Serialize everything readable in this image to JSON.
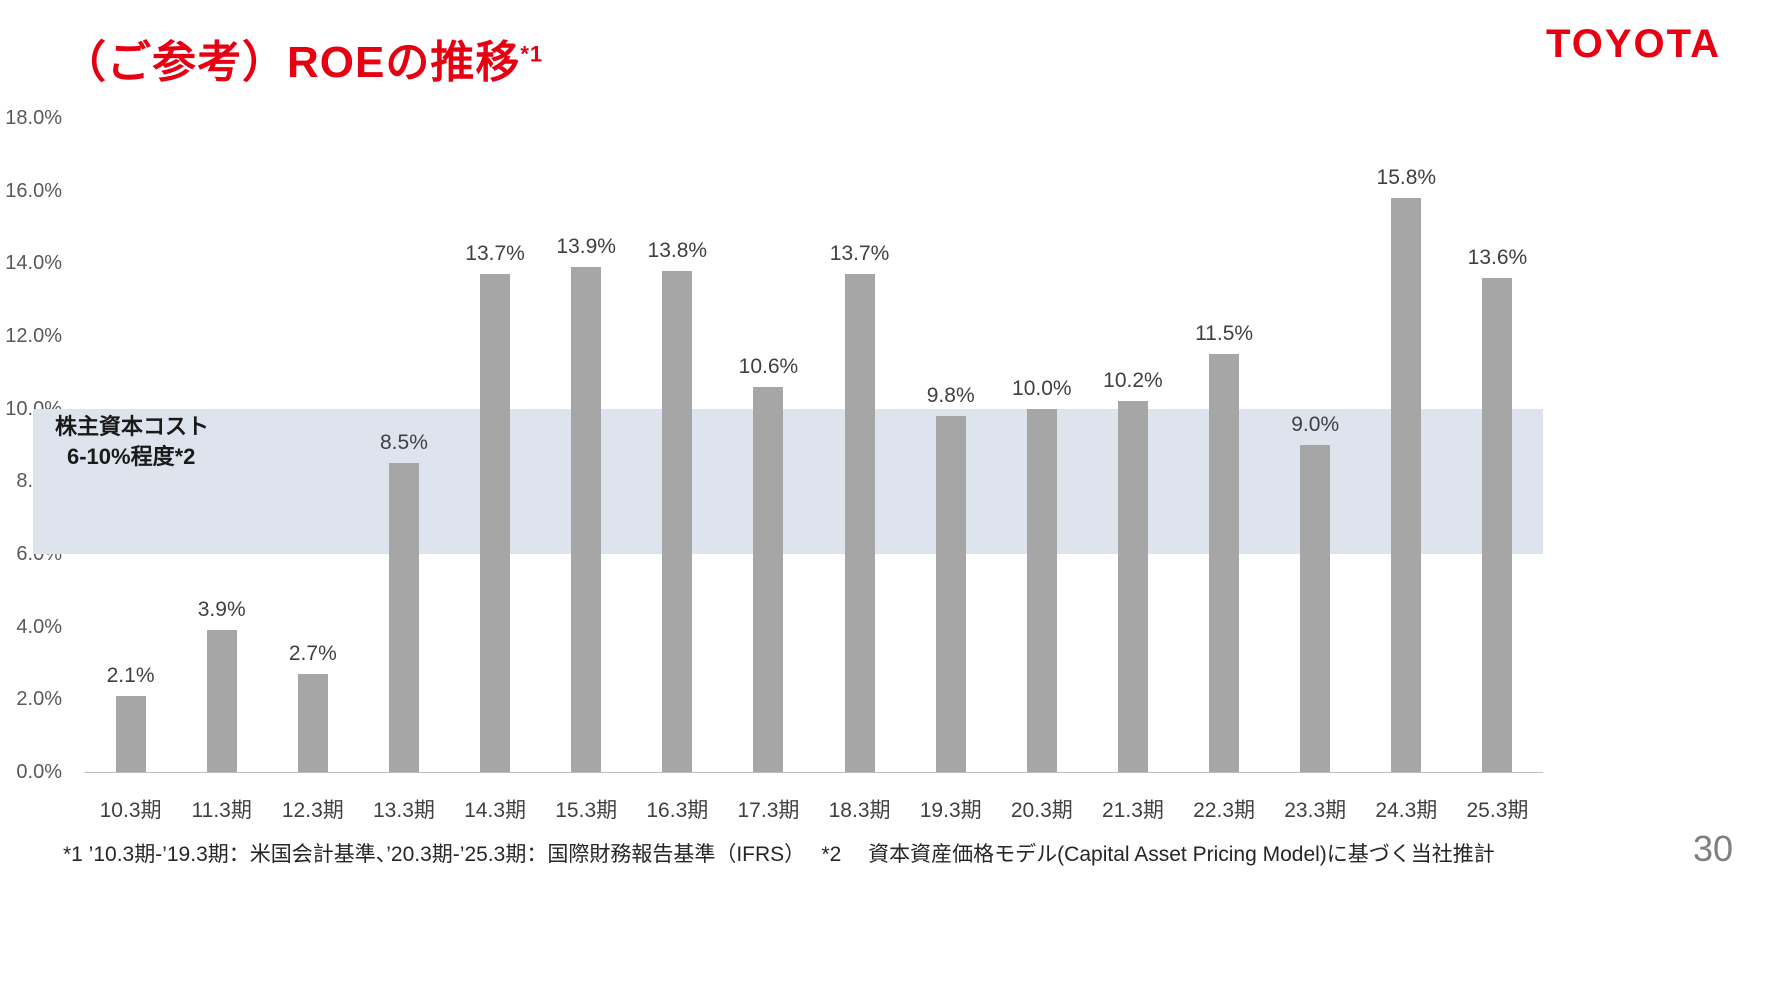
{
  "header": {
    "title": "（ご参考）ROEの推移",
    "title_superscript": "*1",
    "logo": "TOYOTA"
  },
  "colors": {
    "accent_red": "#e60012",
    "bar": "#a6a6a6",
    "band": "#dde4ee"
  },
  "chart_data": {
    "type": "bar",
    "title": "（ご参考）ROEの推移*1",
    "categories": [
      "10.3期",
      "11.3期",
      "12.3期",
      "13.3期",
      "14.3期",
      "15.3期",
      "16.3期",
      "17.3期",
      "18.3期",
      "19.3期",
      "20.3期",
      "21.3期",
      "22.3期",
      "23.3期",
      "24.3期",
      "25.3期"
    ],
    "values": [
      2.1,
      3.9,
      2.7,
      8.5,
      13.7,
      13.9,
      13.8,
      10.6,
      13.7,
      9.8,
      10.0,
      10.2,
      11.5,
      9.0,
      15.8,
      13.6
    ],
    "value_labels": [
      "2.1%",
      "3.9%",
      "2.7%",
      "8.5%",
      "13.7%",
      "13.9%",
      "13.8%",
      "10.6%",
      "13.7%",
      "9.8%",
      "10.0%",
      "10.2%",
      "11.5%",
      "9.0%",
      "15.8%",
      "13.6%"
    ],
    "xlabel": "",
    "ylabel": "",
    "ylim": [
      0,
      18
    ],
    "ytick_step": 2,
    "ytick_labels": [
      "0.0%",
      "2.0%",
      "4.0%",
      "6.0%",
      "8.0%",
      "10.0%",
      "12.0%",
      "14.0%",
      "16.0%",
      "18.0%"
    ],
    "grid": false,
    "legend": false,
    "band": {
      "from": 6,
      "to": 10,
      "label_line1": "株主資本コスト",
      "label_line2": "6-10%程度*2"
    }
  },
  "footnote": {
    "text": "*1  ’10.3期-’19.3期：米国会計基準、’20.3期-’25.3期：国際財務報告基準（IFRS）　 *2 　資本資産価格モデル(Capital Asset Pricing Model)に基づく当社推計"
  },
  "page_number": "30"
}
